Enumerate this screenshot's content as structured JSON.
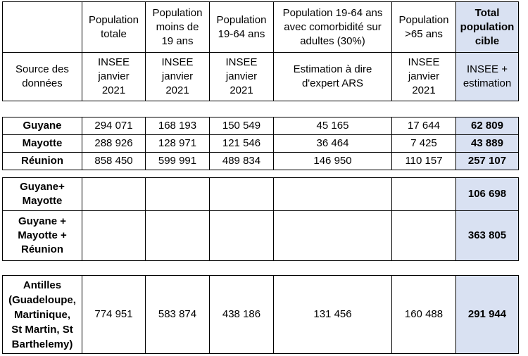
{
  "header": {
    "columns": [
      "",
      "Population\ntotale",
      "Population\nmoins de\n19 ans",
      "Population\n19-64 ans",
      "Population 19-64 ans\navec comorbidité sur\nadultes  (30%)",
      "Population\n>65 ans",
      "Total\npopulation\ncible"
    ],
    "sources": [
      "Source des\ndonnées",
      "INSEE\njanvier\n2021",
      "INSEE\njanvier\n2021",
      "INSEE\njanvier\n2021",
      "Estimation à dire\nd'expert ARS",
      "INSEE\njanvier\n2021",
      "INSEE +\nestimation"
    ]
  },
  "regions": [
    {
      "name": "Guyane",
      "totale": "294 071",
      "moins19": "168 193",
      "p1964": "150 549",
      "comorb": "45 165",
      "p65": "17 644",
      "cible": "62 809"
    },
    {
      "name": "Mayotte",
      "totale": "288 926",
      "moins19": "128 971",
      "p1964": "121 546",
      "comorb": "36 464",
      "p65": "7 425",
      "cible": "43 889"
    },
    {
      "name": "Réunion",
      "totale": "858 450",
      "moins19": "599 991",
      "p1964": "489 834",
      "comorb": "146 950",
      "p65": "110 157",
      "cible": "257 107"
    }
  ],
  "combined": [
    {
      "name": "Guyane+\nMayotte",
      "cible": "106 698"
    },
    {
      "name": "Guyane +\nMayotte +\nRéunion",
      "cible": "363 805"
    }
  ],
  "antilles": {
    "name": "Antilles\n(Guadeloupe,\nMartinique,\nSt Martin, St\nBarthelemy)",
    "totale": "774 951",
    "moins19": "583 874",
    "p1964": "438 186",
    "comorb": "131 456",
    "p65": "160 488",
    "cible": "291 944"
  },
  "colors": {
    "total_fill": "#d9e1f2"
  }
}
